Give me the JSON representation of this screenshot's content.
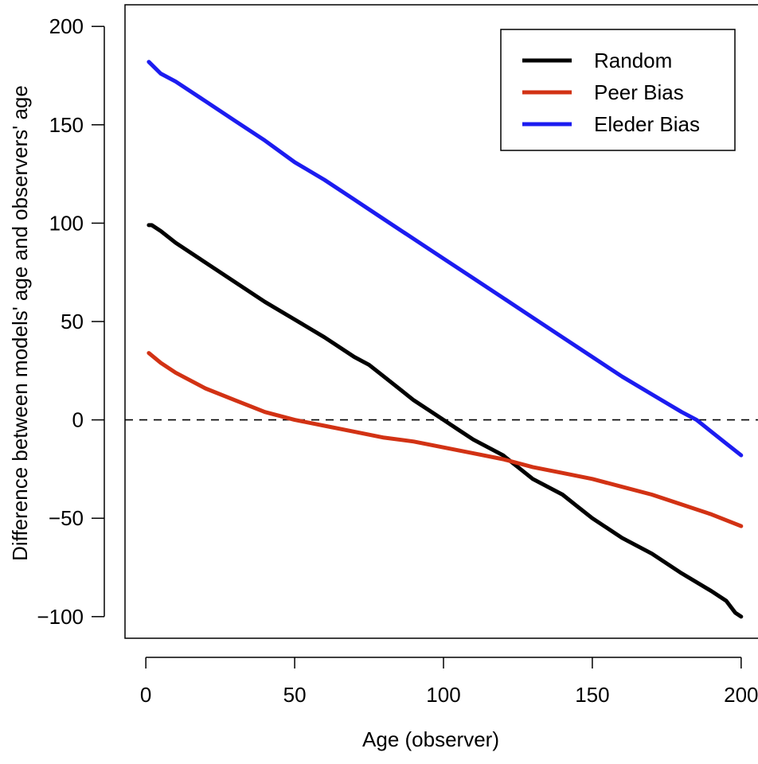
{
  "chart_data": {
    "type": "line",
    "title": "",
    "xlabel": "Age (observer)",
    "ylabel": "Difference between models' age and observers' age",
    "xlim": [
      -7,
      207
    ],
    "ylim": [
      -111,
      211
    ],
    "x_ticks": [
      0,
      50,
      100,
      150,
      200
    ],
    "y_ticks": [
      -100,
      -50,
      0,
      50,
      100,
      150,
      200
    ],
    "x_tick_labels": [
      "0",
      "50",
      "100",
      "150",
      "200"
    ],
    "y_tick_labels": [
      "−100",
      "−50",
      "0",
      "50",
      "100",
      "150",
      "200"
    ],
    "grid": false,
    "reference_line": {
      "y": 0,
      "style": "dashed"
    },
    "legend_position": "top-right",
    "series": [
      {
        "name": "Random",
        "color": "#000000",
        "x": [
          1,
          2,
          5,
          10,
          20,
          25,
          30,
          40,
          50,
          60,
          70,
          75,
          80,
          90,
          95,
          100,
          105,
          110,
          115,
          120,
          125,
          130,
          140,
          145,
          150,
          160,
          170,
          180,
          190,
          195,
          198,
          200
        ],
        "y": [
          99,
          99,
          96,
          90,
          80,
          75,
          70,
          60,
          51,
          42,
          32,
          28,
          22,
          10,
          5,
          0,
          -5,
          -10,
          -14,
          -18,
          -24,
          -30,
          -38,
          -44,
          -50,
          -60,
          -68,
          -78,
          -87,
          -92,
          -98,
          -100
        ]
      },
      {
        "name": "Peer Bias",
        "color": "#d23214",
        "x": [
          1,
          5,
          10,
          20,
          30,
          40,
          50,
          60,
          70,
          80,
          90,
          100,
          110,
          120,
          130,
          140,
          150,
          160,
          170,
          180,
          190,
          200
        ],
        "y": [
          34,
          29,
          24,
          16,
          10,
          4,
          0,
          -3,
          -6,
          -9,
          -11,
          -14,
          -17,
          -20,
          -24,
          -27,
          -30,
          -34,
          -38,
          -43,
          -48,
          -54
        ]
      },
      {
        "name": "Eleder Bias",
        "color": "#1c1cf0",
        "x": [
          1,
          5,
          10,
          20,
          30,
          40,
          50,
          60,
          70,
          80,
          90,
          100,
          110,
          120,
          130,
          140,
          150,
          160,
          170,
          180,
          185,
          190,
          195,
          200
        ],
        "y": [
          182,
          176,
          172,
          162,
          152,
          142,
          131,
          122,
          112,
          102,
          92,
          82,
          72,
          62,
          52,
          42,
          32,
          22,
          13,
          4,
          0,
          -6,
          -12,
          -18
        ]
      }
    ]
  }
}
